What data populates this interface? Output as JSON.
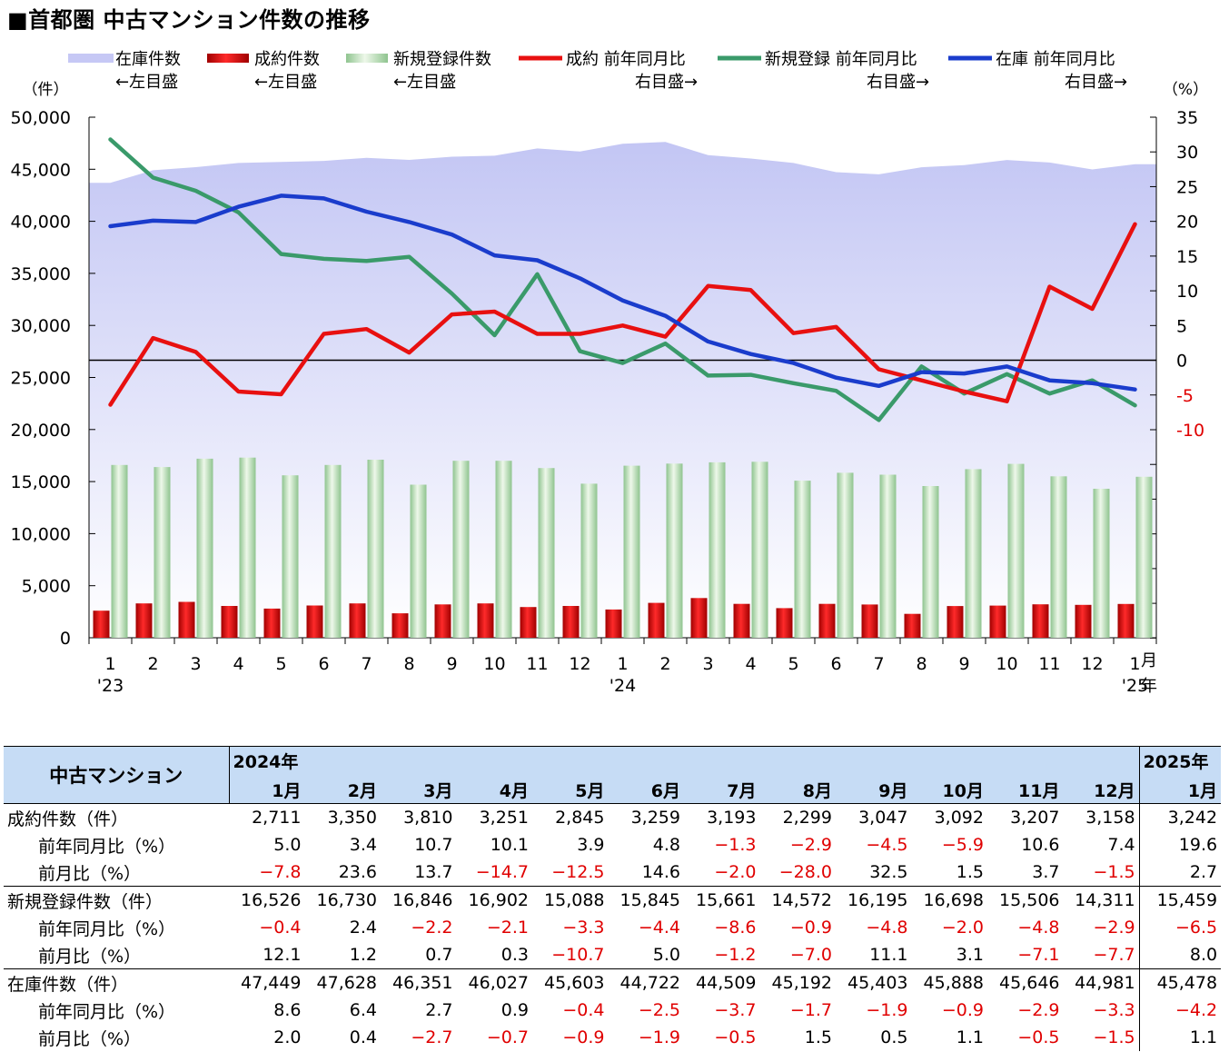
{
  "title": "■首都圏 中古マンション件数の推移",
  "legend": [
    {
      "name": "在庫件数",
      "note": "←左目盛",
      "kind": "area",
      "color": "#c6c8f5"
    },
    {
      "name": "成約件数",
      "note": "←左目盛",
      "kind": "bar",
      "color": "#e00000"
    },
    {
      "name": "新規登録件数",
      "note": "←左目盛",
      "kind": "bar",
      "color": "#a8d4a8"
    },
    {
      "name": "成約 前年同月比",
      "note": "右目盛→",
      "kind": "line",
      "color": "#e81010"
    },
    {
      "name": "新規登録 前年同月比",
      "note": "右目盛→",
      "kind": "line",
      "color": "#3a9a6a"
    },
    {
      "name": "在庫 前年同月比",
      "note": "右目盛→",
      "kind": "line",
      "color": "#1a3ccc"
    }
  ],
  "axis": {
    "left_unit": "（件）",
    "right_unit": "（%）",
    "month_label": "月",
    "year_label": "年"
  },
  "chart_data": {
    "type": "bar",
    "categories": [
      "1",
      "2",
      "3",
      "4",
      "5",
      "6",
      "7",
      "8",
      "9",
      "10",
      "11",
      "12",
      "1",
      "2",
      "3",
      "4",
      "5",
      "6",
      "7",
      "8",
      "9",
      "10",
      "11",
      "12",
      "1"
    ],
    "year_labels": [
      {
        "index": 0,
        "label": "'23"
      },
      {
        "index": 12,
        "label": "'24"
      },
      {
        "index": 24,
        "label": "'25"
      }
    ],
    "left_axis": {
      "min": 0,
      "max": 50000,
      "ticks": [
        "0",
        "5,000",
        "10,000",
        "15,000",
        "20,000",
        "25,000",
        "30,000",
        "35,000",
        "40,000",
        "45,000",
        "50,000"
      ]
    },
    "right_axis": {
      "min": -10,
      "max": 35,
      "ticks": [
        "-10",
        "-5",
        "0",
        "5",
        "10",
        "15",
        "20",
        "25",
        "30",
        "35"
      ]
    },
    "series": [
      {
        "name": "在庫件数",
        "type": "area",
        "axis": "left",
        "color": "#c6c8f5",
        "values": [
          43700,
          44900,
          45200,
          45600,
          45700,
          45800,
          46100,
          45900,
          46200,
          46300,
          47000,
          46700,
          47449,
          47628,
          46351,
          46027,
          45603,
          44722,
          44509,
          45192,
          45403,
          45888,
          45646,
          44981,
          45478
        ]
      },
      {
        "name": "成約件数",
        "type": "bar",
        "axis": "left",
        "color": "#e00000",
        "values": [
          2600,
          3300,
          3450,
          3050,
          2800,
          3100,
          3300,
          2350,
          3200,
          3300,
          2950,
          3050,
          2711,
          3350,
          3810,
          3251,
          2845,
          3259,
          3193,
          2299,
          3047,
          3092,
          3207,
          3158,
          3242
        ]
      },
      {
        "name": "新規登録件数",
        "type": "bar",
        "axis": "left",
        "color": "#a8d4a8",
        "values": [
          16600,
          16400,
          17200,
          17300,
          15600,
          16600,
          17100,
          14700,
          17000,
          17000,
          16300,
          14800,
          16526,
          16730,
          16846,
          16902,
          15088,
          15845,
          15661,
          14572,
          16195,
          16698,
          15506,
          14311,
          15459
        ]
      },
      {
        "name": "成約 前年同月比",
        "type": "line",
        "axis": "right",
        "color": "#e81010",
        "values": [
          -6.4,
          3.2,
          1.2,
          -4.5,
          -4.9,
          3.8,
          4.5,
          1.1,
          6.6,
          7.0,
          3.8,
          3.8,
          5.0,
          3.4,
          10.7,
          10.1,
          3.9,
          4.8,
          -1.3,
          -2.9,
          -4.5,
          -5.9,
          10.6,
          7.4,
          19.6
        ]
      },
      {
        "name": "新規登録 前年同月比",
        "type": "line",
        "axis": "right",
        "color": "#3a9a6a",
        "values": [
          31.8,
          26.3,
          24.4,
          21.3,
          15.3,
          14.6,
          14.3,
          14.9,
          9.6,
          3.6,
          12.4,
          1.3,
          -0.4,
          2.4,
          -2.2,
          -2.1,
          -3.3,
          -4.4,
          -8.6,
          -0.9,
          -4.8,
          -2.0,
          -4.8,
          -2.9,
          -6.5
        ]
      },
      {
        "name": "在庫 前年同月比",
        "type": "line",
        "axis": "right",
        "color": "#1a3ccc",
        "values": [
          19.3,
          20.1,
          19.9,
          22.1,
          23.7,
          23.3,
          21.4,
          19.9,
          18.1,
          15.1,
          14.4,
          11.8,
          8.6,
          6.4,
          2.7,
          0.9,
          -0.4,
          -2.5,
          -3.7,
          -1.7,
          -1.9,
          -0.9,
          -2.9,
          -3.3,
          -4.2
        ]
      }
    ],
    "zero_line": {
      "axis": "right",
      "value": 0
    }
  },
  "table": {
    "title": "中古マンション",
    "year_2024": "2024年",
    "year_2025": "2025年",
    "months": [
      "1月",
      "2月",
      "3月",
      "4月",
      "5月",
      "6月",
      "7月",
      "8月",
      "9月",
      "10月",
      "11月",
      "12月",
      "1月"
    ],
    "rows": [
      {
        "label": "成約件数（件）",
        "indent": false,
        "group_start": true,
        "values": [
          "2,711",
          "3,350",
          "3,810",
          "3,251",
          "2,845",
          "3,259",
          "3,193",
          "2,299",
          "3,047",
          "3,092",
          "3,207",
          "3,158",
          "3,242"
        ]
      },
      {
        "label": "前年同月比（%）",
        "indent": true,
        "values": [
          "5.0",
          "3.4",
          "10.7",
          "10.1",
          "3.9",
          "4.8",
          "−1.3",
          "−2.9",
          "−4.5",
          "−5.9",
          "10.6",
          "7.4",
          "19.6"
        ]
      },
      {
        "label": "前月比（%）",
        "indent": true,
        "values": [
          "−7.8",
          "23.6",
          "13.7",
          "−14.7",
          "−12.5",
          "14.6",
          "−2.0",
          "−28.0",
          "32.5",
          "1.5",
          "3.7",
          "−1.5",
          "2.7"
        ]
      },
      {
        "label": "新規登録件数（件）",
        "indent": false,
        "group_start": true,
        "values": [
          "16,526",
          "16,730",
          "16,846",
          "16,902",
          "15,088",
          "15,845",
          "15,661",
          "14,572",
          "16,195",
          "16,698",
          "15,506",
          "14,311",
          "15,459"
        ]
      },
      {
        "label": "前年同月比（%）",
        "indent": true,
        "values": [
          "−0.4",
          "2.4",
          "−2.2",
          "−2.1",
          "−3.3",
          "−4.4",
          "−8.6",
          "−0.9",
          "−4.8",
          "−2.0",
          "−4.8",
          "−2.9",
          "−6.5"
        ]
      },
      {
        "label": "前月比（%）",
        "indent": true,
        "values": [
          "12.1",
          "1.2",
          "0.7",
          "0.3",
          "−10.7",
          "5.0",
          "−1.2",
          "−7.0",
          "11.1",
          "3.1",
          "−7.1",
          "−7.7",
          "8.0"
        ]
      },
      {
        "label": "在庫件数（件）",
        "indent": false,
        "group_start": true,
        "values": [
          "47,449",
          "47,628",
          "46,351",
          "46,027",
          "45,603",
          "44,722",
          "44,509",
          "45,192",
          "45,403",
          "45,888",
          "45,646",
          "44,981",
          "45,478"
        ]
      },
      {
        "label": "前年同月比（%）",
        "indent": true,
        "values": [
          "8.6",
          "6.4",
          "2.7",
          "0.9",
          "−0.4",
          "−2.5",
          "−3.7",
          "−1.7",
          "−1.9",
          "−0.9",
          "−2.9",
          "−3.3",
          "−4.2"
        ]
      },
      {
        "label": "前月比（%）",
        "indent": true,
        "values": [
          "2.0",
          "0.4",
          "−2.7",
          "−0.7",
          "−0.9",
          "−1.9",
          "−0.5",
          "1.5",
          "0.5",
          "1.1",
          "−0.5",
          "−1.5",
          "1.1"
        ]
      }
    ]
  }
}
